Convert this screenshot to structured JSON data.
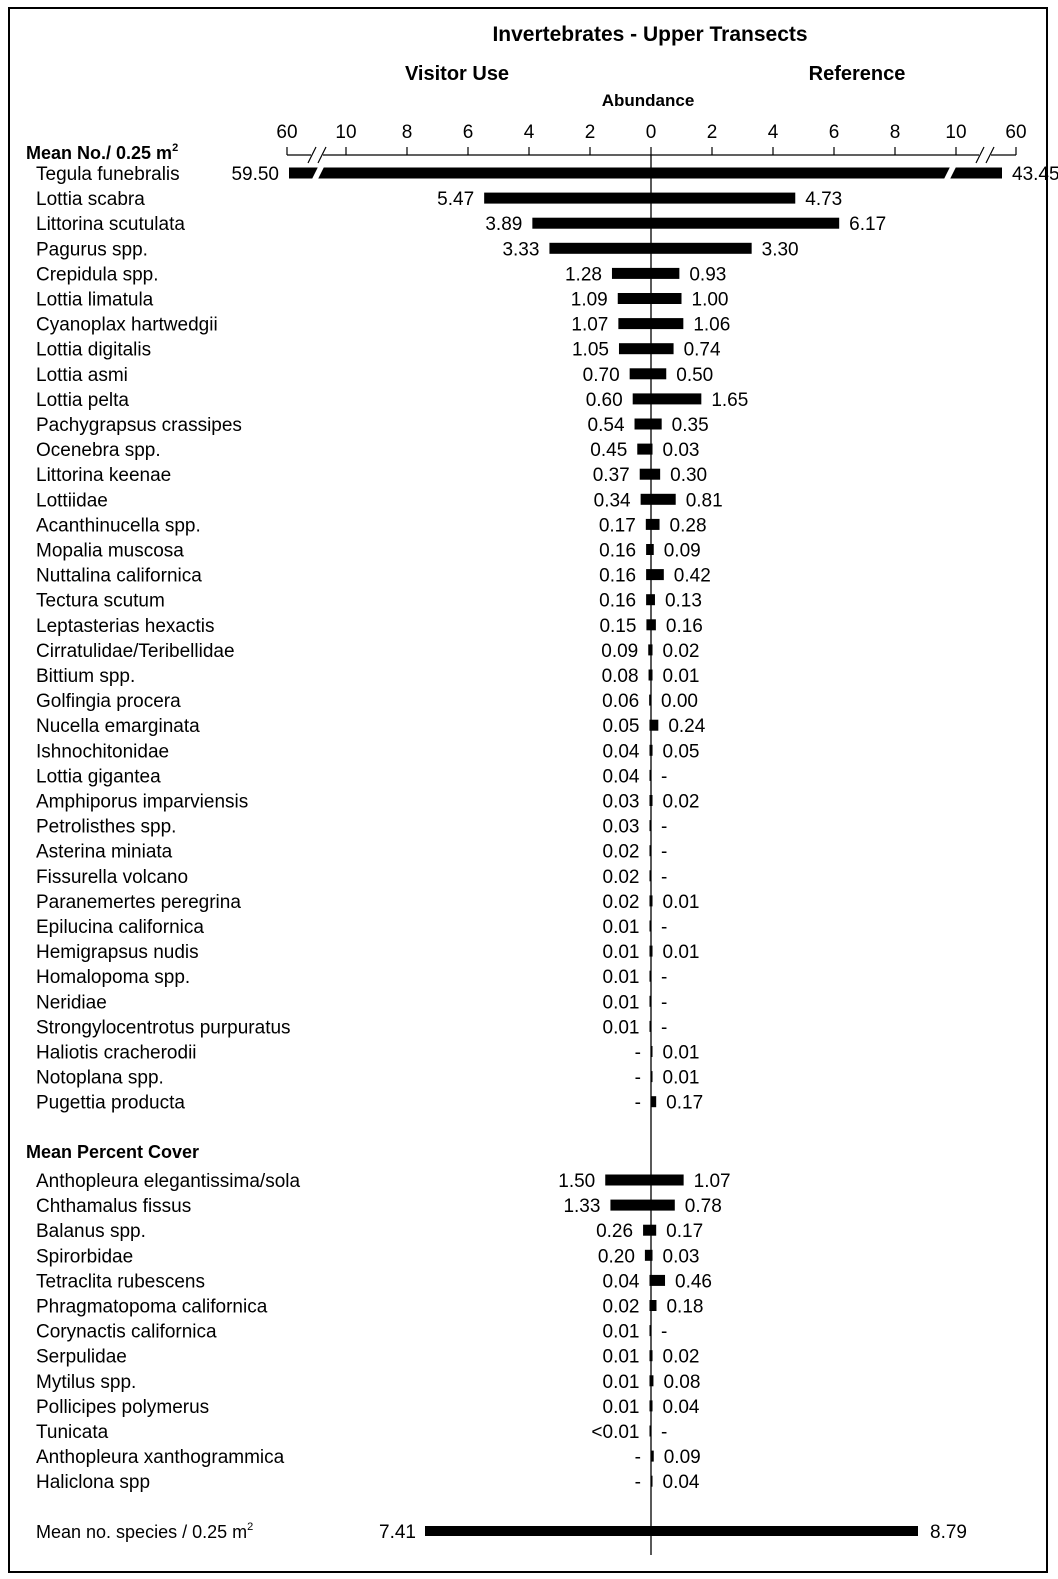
{
  "chart_data": {
    "type": "bar",
    "title": "Invertebrates - Upper Transects",
    "left_header": "Visitor Use",
    "right_header": "Reference",
    "axis_label": "Abundance",
    "axis_left_ticks": [
      "60",
      "10",
      "8",
      "6",
      "4",
      "2"
    ],
    "axis_center_tick": "0",
    "axis_right_ticks": [
      "2",
      "4",
      "6",
      "8",
      "10",
      "60"
    ],
    "sections": [
      {
        "title": "Mean No./ 0.25 m",
        "title_sup": "2",
        "rows": [
          {
            "name": "Tegula funebralis",
            "visitor": 59.5,
            "reference": 43.45,
            "visitor_label": "59.50",
            "reference_label": "43.45"
          },
          {
            "name": "Lottia scabra",
            "visitor": 5.47,
            "reference": 4.73,
            "visitor_label": "5.47",
            "reference_label": "4.73"
          },
          {
            "name": "Littorina scutulata",
            "visitor": 3.89,
            "reference": 6.17,
            "visitor_label": "3.89",
            "reference_label": "6.17"
          },
          {
            "name": "Pagurus spp.",
            "visitor": 3.33,
            "reference": 3.3,
            "visitor_label": "3.33",
            "reference_label": "3.30"
          },
          {
            "name": "Crepidula spp.",
            "visitor": 1.28,
            "reference": 0.93,
            "visitor_label": "1.28",
            "reference_label": "0.93"
          },
          {
            "name": "Lottia limatula",
            "visitor": 1.09,
            "reference": 1.0,
            "visitor_label": "1.09",
            "reference_label": "1.00"
          },
          {
            "name": "Cyanoplax hartwedgii",
            "visitor": 1.07,
            "reference": 1.06,
            "visitor_label": "1.07",
            "reference_label": "1.06"
          },
          {
            "name": "Lottia digitalis",
            "visitor": 1.05,
            "reference": 0.74,
            "visitor_label": "1.05",
            "reference_label": "0.74"
          },
          {
            "name": "Lottia asmi",
            "visitor": 0.7,
            "reference": 0.5,
            "visitor_label": "0.70",
            "reference_label": "0.50"
          },
          {
            "name": "Lottia pelta",
            "visitor": 0.6,
            "reference": 1.65,
            "visitor_label": "0.60",
            "reference_label": "1.65"
          },
          {
            "name": "Pachygrapsus crassipes",
            "visitor": 0.54,
            "reference": 0.35,
            "visitor_label": "0.54",
            "reference_label": "0.35"
          },
          {
            "name": "Ocenebra spp.",
            "visitor": 0.45,
            "reference": 0.03,
            "visitor_label": "0.45",
            "reference_label": "0.03"
          },
          {
            "name": "Littorina keenae",
            "visitor": 0.37,
            "reference": 0.3,
            "visitor_label": "0.37",
            "reference_label": "0.30"
          },
          {
            "name": "Lottiidae",
            "visitor": 0.34,
            "reference": 0.81,
            "visitor_label": "0.34",
            "reference_label": "0.81"
          },
          {
            "name": "Acanthinucella spp.",
            "visitor": 0.17,
            "reference": 0.28,
            "visitor_label": "0.17",
            "reference_label": "0.28"
          },
          {
            "name": "Mopalia muscosa",
            "visitor": 0.16,
            "reference": 0.09,
            "visitor_label": "0.16",
            "reference_label": "0.09"
          },
          {
            "name": "Nuttalina californica",
            "visitor": 0.16,
            "reference": 0.42,
            "visitor_label": "0.16",
            "reference_label": "0.42"
          },
          {
            "name": "Tectura scutum",
            "visitor": 0.16,
            "reference": 0.13,
            "visitor_label": "0.16",
            "reference_label": "0.13"
          },
          {
            "name": "Leptasterias hexactis",
            "visitor": 0.15,
            "reference": 0.16,
            "visitor_label": "0.15",
            "reference_label": "0.16"
          },
          {
            "name": "Cirratulidae/Teribellidae",
            "visitor": 0.09,
            "reference": 0.02,
            "visitor_label": "0.09",
            "reference_label": "0.02"
          },
          {
            "name": "Bittium spp.",
            "visitor": 0.08,
            "reference": 0.01,
            "visitor_label": "0.08",
            "reference_label": "0.01"
          },
          {
            "name": "Golfingia procera",
            "visitor": 0.06,
            "reference": 0.0,
            "visitor_label": "0.06",
            "reference_label": "0.00"
          },
          {
            "name": "Nucella emarginata",
            "visitor": 0.05,
            "reference": 0.24,
            "visitor_label": "0.05",
            "reference_label": "0.24"
          },
          {
            "name": "Ishnochitonidae",
            "visitor": 0.04,
            "reference": 0.05,
            "visitor_label": "0.04",
            "reference_label": "0.05"
          },
          {
            "name": "Lottia gigantea",
            "visitor": 0.04,
            "reference": null,
            "visitor_label": "0.04",
            "reference_label": "-"
          },
          {
            "name": "Amphiporus imparviensis",
            "visitor": 0.03,
            "reference": 0.02,
            "visitor_label": "0.03",
            "reference_label": "0.02"
          },
          {
            "name": "Petrolisthes spp.",
            "visitor": 0.03,
            "reference": null,
            "visitor_label": "0.03",
            "reference_label": "-"
          },
          {
            "name": "Asterina miniata",
            "visitor": 0.02,
            "reference": null,
            "visitor_label": "0.02",
            "reference_label": "-"
          },
          {
            "name": "Fissurella volcano",
            "visitor": 0.02,
            "reference": null,
            "visitor_label": "0.02",
            "reference_label": "-"
          },
          {
            "name": "Paranemertes peregrina",
            "visitor": 0.02,
            "reference": 0.01,
            "visitor_label": "0.02",
            "reference_label": "0.01"
          },
          {
            "name": "Epilucina californica",
            "visitor": 0.01,
            "reference": null,
            "visitor_label": "0.01",
            "reference_label": "-"
          },
          {
            "name": "Hemigrapsus nudis",
            "visitor": 0.01,
            "reference": 0.01,
            "visitor_label": "0.01",
            "reference_label": "0.01"
          },
          {
            "name": "Homalopoma spp.",
            "visitor": 0.01,
            "reference": null,
            "visitor_label": "0.01",
            "reference_label": "-"
          },
          {
            "name": "Neridiae",
            "visitor": 0.01,
            "reference": null,
            "visitor_label": "0.01",
            "reference_label": "-"
          },
          {
            "name": "Strongylocentrotus purpuratus",
            "visitor": 0.01,
            "reference": null,
            "visitor_label": "0.01",
            "reference_label": "-"
          },
          {
            "name": "Haliotis cracherodii",
            "visitor": null,
            "reference": 0.01,
            "visitor_label": "-",
            "reference_label": "0.01"
          },
          {
            "name": "Notoplana spp.",
            "visitor": null,
            "reference": 0.01,
            "visitor_label": "-",
            "reference_label": "0.01"
          },
          {
            "name": "Pugettia producta",
            "visitor": null,
            "reference": 0.17,
            "visitor_label": "-",
            "reference_label": "0.17"
          }
        ]
      },
      {
        "title": "Mean Percent Cover",
        "title_sup": "",
        "rows": [
          {
            "name": "Anthopleura elegantissima/sola",
            "visitor": 1.5,
            "reference": 1.07,
            "visitor_label": "1.50",
            "reference_label": "1.07"
          },
          {
            "name": "Chthamalus fissus",
            "visitor": 1.33,
            "reference": 0.78,
            "visitor_label": "1.33",
            "reference_label": "0.78"
          },
          {
            "name": "Balanus spp.",
            "visitor": 0.26,
            "reference": 0.17,
            "visitor_label": "0.26",
            "reference_label": "0.17"
          },
          {
            "name": "Spirorbidae",
            "visitor": 0.2,
            "reference": 0.03,
            "visitor_label": "0.20",
            "reference_label": "0.03"
          },
          {
            "name": "Tetraclita rubescens",
            "visitor": 0.04,
            "reference": 0.46,
            "visitor_label": "0.04",
            "reference_label": "0.46"
          },
          {
            "name": "Phragmatopoma californica",
            "visitor": 0.02,
            "reference": 0.18,
            "visitor_label": "0.02",
            "reference_label": "0.18"
          },
          {
            "name": "Corynactis californica",
            "visitor": 0.01,
            "reference": null,
            "visitor_label": "0.01",
            "reference_label": "-"
          },
          {
            "name": "Serpulidae",
            "visitor": 0.01,
            "reference": 0.02,
            "visitor_label": "0.01",
            "reference_label": "0.02"
          },
          {
            "name": "Mytilus spp.",
            "visitor": 0.01,
            "reference": 0.08,
            "visitor_label": "0.01",
            "reference_label": "0.08"
          },
          {
            "name": "Pollicipes polymerus",
            "visitor": 0.01,
            "reference": 0.04,
            "visitor_label": "0.01",
            "reference_label": "0.04"
          },
          {
            "name": "Tunicata",
            "visitor": 0.005,
            "reference": null,
            "visitor_label": "<0.01",
            "reference_label": "-"
          },
          {
            "name": "Anthopleura xanthogrammica",
            "visitor": null,
            "reference": 0.09,
            "visitor_label": "-",
            "reference_label": "0.09"
          },
          {
            "name": "Haliclona spp",
            "visitor": null,
            "reference": 0.04,
            "visitor_label": "-",
            "reference_label": "0.04"
          }
        ]
      }
    ],
    "summary": {
      "name": "Mean no. species / 0.25 m",
      "name_sup": "2",
      "visitor": 7.41,
      "reference": 8.79,
      "visitor_label": "7.41",
      "reference_label": "8.79"
    },
    "colors": {
      "bar": "#000000",
      "text": "#000000",
      "background": "#ffffff"
    }
  }
}
